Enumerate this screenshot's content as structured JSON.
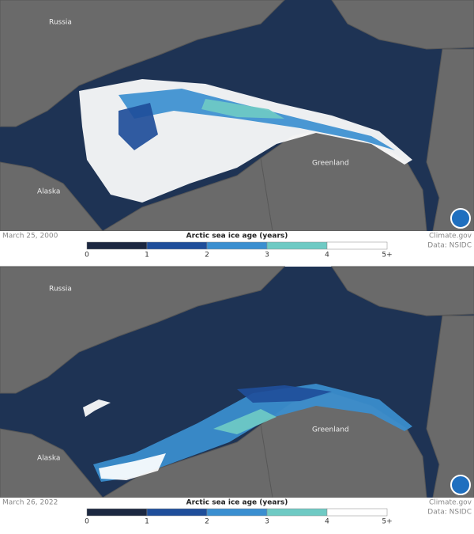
{
  "panels": [
    {
      "date": "March 25, 2000",
      "labels": {
        "russia": "Russia",
        "alaska": "Alaska",
        "greenland": "Greenland"
      }
    },
    {
      "date": "March 26, 2022",
      "labels": {
        "russia": "Russia",
        "alaska": "Alaska",
        "greenland": "Greenland"
      }
    }
  ],
  "legend": {
    "title": "Arctic sea ice age (years)",
    "ticks": [
      "0",
      "1",
      "2",
      "3",
      "4",
      "5+"
    ],
    "colors": [
      "#1c2841",
      "#1f4e9a",
      "#3b8fd0",
      "#6fcac4",
      "#ffffff"
    ]
  },
  "credits": {
    "site": "Climate.gov",
    "source": "Data: NSIDC"
  }
}
